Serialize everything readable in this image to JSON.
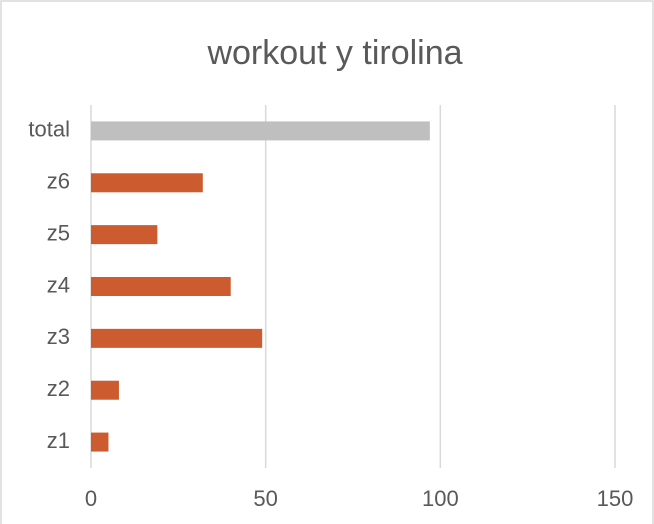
{
  "chart_data": {
    "type": "barh",
    "title": "workout y tirolina",
    "categories": [
      "total",
      "z6",
      "z5",
      "z4",
      "z3",
      "z2",
      "z1"
    ],
    "values": [
      97,
      32,
      19,
      40,
      49,
      8,
      5
    ],
    "colors": [
      "#bfbfbf",
      "#cc5c30",
      "#cc5c30",
      "#cc5c30",
      "#cc5c30",
      "#cc5c30",
      "#cc5c30"
    ],
    "xlim": [
      0,
      150
    ],
    "xticks": [
      0,
      50,
      100,
      150
    ],
    "grid": true
  }
}
